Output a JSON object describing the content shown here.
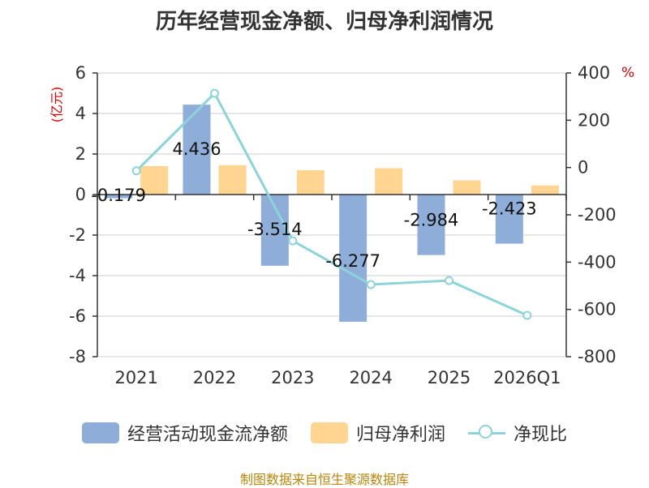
{
  "title": "历年经营现金净额、归母净利润情况",
  "unit_left": "(亿元)",
  "unit_right": "%",
  "source": "制图数据来自恒生聚源数据库",
  "colors": {
    "cash": "#8fadd9",
    "profit": "#ffd591",
    "ratio": "#8dd3d9",
    "unit": "#d40000",
    "source": "#b8860b"
  },
  "chart_data": {
    "type": "bar",
    "title": "历年经营现金净额、归母净利润情况",
    "categories": [
      "2021",
      "2022",
      "2023",
      "2024",
      "2025",
      "2026Q1"
    ],
    "series": [
      {
        "name": "经营活动现金流净额",
        "type": "bar",
        "axis": "left",
        "values": [
          -0.179,
          4.436,
          -3.514,
          -6.277,
          -2.984,
          -2.423
        ],
        "labels": [
          "-0.179",
          "4.436",
          "-3.514",
          "-6.277",
          "-2.984",
          "-2.423"
        ]
      },
      {
        "name": "归母净利润",
        "type": "bar",
        "axis": "left",
        "values": [
          1.4,
          1.45,
          1.2,
          1.3,
          0.7,
          0.45
        ]
      },
      {
        "name": "净现比",
        "type": "line",
        "axis": "right",
        "values": [
          -14,
          314,
          -310,
          -495,
          -478,
          -625
        ]
      }
    ],
    "y_left": {
      "min": -8,
      "max": 6,
      "ticks": [
        -8,
        -6,
        -4,
        -2,
        0,
        2,
        4,
        6
      ],
      "tick_labels": [
        "-8",
        "-6",
        "-4",
        "-2",
        "0",
        "2",
        "4",
        "6"
      ]
    },
    "y_right": {
      "min": -800,
      "max": 400,
      "ticks": [
        -800,
        -600,
        -400,
        -200,
        0,
        200,
        400
      ],
      "tick_labels": [
        "-800",
        "-600",
        "-400",
        "-200",
        "0",
        "200",
        "400"
      ]
    },
    "grid": true,
    "legend_position": "bottom"
  }
}
